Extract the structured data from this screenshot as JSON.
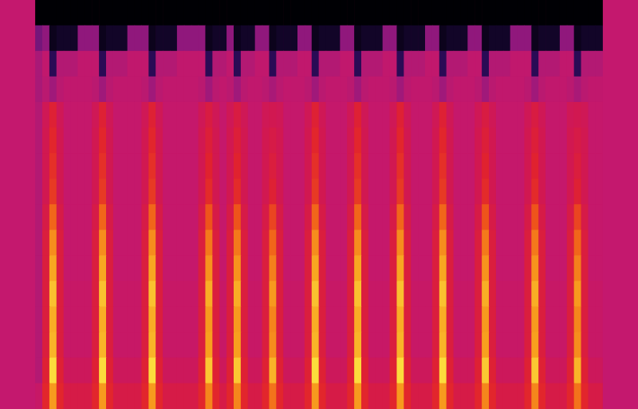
{
  "chart_data": {
    "type": "heatmap",
    "grid": false,
    "tick_labels": false,
    "cells": [
      [
        48,
        60,
        80,
        60,
        54,
        54,
        54,
        54,
        60,
        80,
        60,
        54,
        54,
        54,
        54,
        60,
        80,
        60,
        54,
        54,
        54,
        54,
        54,
        60,
        77,
        60,
        54,
        60,
        77,
        60,
        54,
        54,
        60,
        74,
        60,
        54,
        54,
        54,
        60,
        80,
        60,
        54,
        54,
        54,
        60,
        80,
        60,
        54,
        54,
        54,
        60,
        80,
        60,
        54,
        54,
        54,
        60,
        80,
        60,
        54,
        54,
        54,
        60,
        77,
        60,
        54,
        54,
        54,
        54,
        60,
        77,
        60,
        54,
        54,
        54,
        60,
        74,
        60,
        54,
        54
      ],
      [
        42,
        58,
        90,
        58,
        50,
        50,
        50,
        50,
        58,
        90,
        58,
        50,
        50,
        50,
        50,
        58,
        90,
        58,
        50,
        50,
        50,
        50,
        50,
        58,
        87,
        58,
        50,
        58,
        87,
        58,
        50,
        50,
        58,
        84,
        58,
        50,
        50,
        50,
        58,
        90,
        58,
        50,
        50,
        50,
        58,
        90,
        58,
        50,
        50,
        50,
        58,
        90,
        58,
        50,
        50,
        50,
        58,
        90,
        58,
        50,
        50,
        50,
        58,
        87,
        58,
        50,
        50,
        50,
        50,
        58,
        87,
        58,
        50,
        50,
        50,
        58,
        84,
        58,
        50,
        50
      ],
      [
        42,
        56,
        84,
        56,
        48,
        48,
        48,
        48,
        56,
        84,
        56,
        48,
        48,
        48,
        48,
        56,
        84,
        56,
        48,
        48,
        48,
        48,
        48,
        56,
        81,
        56,
        48,
        56,
        81,
        56,
        48,
        48,
        56,
        78,
        56,
        48,
        48,
        48,
        56,
        84,
        56,
        48,
        48,
        48,
        56,
        84,
        56,
        48,
        48,
        48,
        56,
        84,
        56,
        48,
        48,
        48,
        56,
        84,
        56,
        48,
        48,
        48,
        56,
        81,
        56,
        48,
        48,
        48,
        48,
        56,
        81,
        56,
        48,
        48,
        48,
        56,
        78,
        56,
        48,
        48
      ],
      [
        42,
        56,
        83,
        56,
        48,
        48,
        48,
        48,
        56,
        83,
        56,
        48,
        48,
        48,
        48,
        56,
        83,
        56,
        48,
        48,
        48,
        48,
        48,
        56,
        80,
        56,
        48,
        56,
        80,
        56,
        48,
        48,
        56,
        77,
        56,
        48,
        48,
        48,
        56,
        83,
        56,
        48,
        48,
        48,
        56,
        83,
        56,
        48,
        48,
        48,
        56,
        83,
        56,
        48,
        48,
        48,
        56,
        83,
        56,
        48,
        48,
        48,
        56,
        80,
        56,
        48,
        48,
        48,
        48,
        56,
        80,
        56,
        48,
        48,
        48,
        56,
        77,
        56,
        48,
        48
      ],
      [
        42,
        56,
        86,
        56,
        48,
        48,
        48,
        48,
        56,
        86,
        56,
        48,
        48,
        48,
        48,
        56,
        86,
        56,
        48,
        48,
        48,
        48,
        48,
        56,
        83,
        56,
        48,
        56,
        83,
        56,
        48,
        48,
        56,
        80,
        56,
        48,
        48,
        48,
        56,
        86,
        56,
        48,
        48,
        48,
        56,
        86,
        56,
        48,
        48,
        48,
        56,
        86,
        56,
        48,
        48,
        48,
        56,
        86,
        56,
        48,
        48,
        48,
        56,
        83,
        56,
        48,
        48,
        48,
        48,
        56,
        83,
        56,
        48,
        48,
        48,
        56,
        80,
        56,
        48,
        48
      ],
      [
        42,
        56,
        82,
        56,
        47,
        47,
        47,
        47,
        56,
        82,
        56,
        47,
        47,
        47,
        47,
        56,
        82,
        56,
        47,
        47,
        47,
        47,
        47,
        56,
        79,
        56,
        47,
        56,
        79,
        56,
        47,
        47,
        56,
        76,
        56,
        47,
        47,
        47,
        56,
        82,
        56,
        47,
        47,
        47,
        56,
        82,
        56,
        47,
        47,
        47,
        56,
        82,
        56,
        47,
        47,
        47,
        56,
        82,
        56,
        47,
        47,
        47,
        56,
        79,
        56,
        47,
        47,
        47,
        47,
        56,
        79,
        56,
        47,
        47,
        47,
        56,
        76,
        56,
        47,
        47
      ],
      [
        42,
        56,
        78,
        56,
        47,
        47,
        47,
        47,
        56,
        78,
        56,
        47,
        47,
        47,
        47,
        56,
        78,
        56,
        47,
        47,
        47,
        47,
        47,
        56,
        75,
        56,
        47,
        56,
        75,
        56,
        47,
        47,
        56,
        72,
        56,
        47,
        47,
        47,
        56,
        78,
        56,
        47,
        47,
        47,
        56,
        78,
        56,
        47,
        47,
        47,
        56,
        78,
        56,
        47,
        47,
        47,
        56,
        78,
        56,
        47,
        47,
        47,
        56,
        75,
        56,
        47,
        47,
        47,
        47,
        56,
        75,
        56,
        47,
        47,
        47,
        56,
        72,
        56,
        47,
        47
      ],
      [
        42,
        54,
        72,
        54,
        47,
        47,
        47,
        47,
        54,
        72,
        54,
        47,
        47,
        47,
        47,
        54,
        72,
        54,
        47,
        47,
        47,
        47,
        47,
        54,
        69,
        54,
        47,
        54,
        69,
        54,
        47,
        47,
        54,
        66,
        54,
        47,
        47,
        47,
        54,
        72,
        54,
        47,
        47,
        47,
        54,
        72,
        54,
        47,
        47,
        47,
        54,
        72,
        54,
        47,
        47,
        47,
        54,
        72,
        54,
        47,
        47,
        47,
        54,
        69,
        54,
        47,
        47,
        47,
        47,
        54,
        69,
        54,
        47,
        47,
        47,
        54,
        66,
        54,
        47,
        47
      ],
      [
        42,
        52,
        64,
        52,
        47,
        47,
        47,
        47,
        52,
        64,
        52,
        47,
        47,
        47,
        47,
        52,
        64,
        52,
        47,
        47,
        47,
        47,
        47,
        52,
        61,
        52,
        47,
        52,
        61,
        52,
        47,
        47,
        52,
        58,
        52,
        47,
        47,
        47,
        52,
        64,
        52,
        47,
        47,
        47,
        52,
        64,
        52,
        47,
        47,
        47,
        52,
        64,
        52,
        47,
        47,
        47,
        52,
        64,
        52,
        47,
        47,
        47,
        52,
        61,
        52,
        47,
        47,
        47,
        47,
        52,
        61,
        52,
        47,
        47,
        47,
        52,
        58,
        52,
        47,
        47
      ],
      [
        42,
        52,
        62,
        52,
        47,
        47,
        47,
        47,
        52,
        62,
        52,
        47,
        47,
        47,
        47,
        52,
        62,
        52,
        47,
        47,
        47,
        47,
        47,
        52,
        59,
        52,
        47,
        52,
        59,
        52,
        47,
        47,
        52,
        56,
        52,
        47,
        47,
        47,
        52,
        62,
        52,
        47,
        47,
        47,
        52,
        62,
        52,
        47,
        47,
        47,
        52,
        62,
        52,
        47,
        47,
        47,
        52,
        62,
        52,
        47,
        47,
        47,
        52,
        59,
        52,
        47,
        47,
        47,
        47,
        52,
        59,
        52,
        47,
        47,
        47,
        52,
        56,
        52,
        47,
        47
      ],
      [
        42,
        52,
        60,
        52,
        47,
        47,
        47,
        47,
        52,
        60,
        52,
        47,
        47,
        47,
        47,
        52,
        60,
        52,
        47,
        47,
        47,
        47,
        47,
        52,
        57,
        52,
        47,
        52,
        57,
        52,
        47,
        47,
        52,
        54,
        52,
        47,
        47,
        47,
        52,
        60,
        52,
        47,
        47,
        47,
        52,
        60,
        52,
        47,
        47,
        47,
        52,
        60,
        52,
        47,
        47,
        47,
        52,
        60,
        52,
        47,
        47,
        47,
        52,
        57,
        52,
        47,
        47,
        47,
        47,
        52,
        57,
        52,
        47,
        47,
        47,
        52,
        54,
        52,
        47,
        47
      ],
      [
        42,
        51,
        58,
        51,
        47,
        47,
        47,
        47,
        51,
        58,
        51,
        47,
        47,
        47,
        47,
        51,
        58,
        51,
        47,
        47,
        47,
        47,
        47,
        51,
        55,
        51,
        47,
        51,
        55,
        51,
        47,
        47,
        51,
        52,
        51,
        47,
        47,
        47,
        51,
        58,
        51,
        47,
        47,
        47,
        51,
        58,
        51,
        47,
        47,
        47,
        51,
        58,
        51,
        47,
        47,
        47,
        51,
        58,
        51,
        47,
        47,
        47,
        51,
        55,
        51,
        47,
        47,
        47,
        47,
        51,
        55,
        51,
        47,
        47,
        47,
        51,
        52,
        51,
        47,
        47
      ],
      [
        40,
        44,
        38,
        44,
        46,
        46,
        46,
        46,
        44,
        38,
        44,
        46,
        46,
        46,
        46,
        44,
        38,
        44,
        46,
        46,
        46,
        46,
        46,
        44,
        38,
        44,
        46,
        44,
        38,
        44,
        46,
        46,
        44,
        40,
        44,
        46,
        46,
        46,
        44,
        38,
        44,
        46,
        46,
        46,
        44,
        38,
        44,
        46,
        46,
        46,
        44,
        38,
        44,
        46,
        46,
        46,
        44,
        38,
        44,
        46,
        46,
        46,
        44,
        38,
        44,
        46,
        46,
        46,
        46,
        44,
        38,
        44,
        46,
        46,
        46,
        44,
        40,
        44,
        46,
        46
      ],
      [
        40,
        46,
        14,
        42,
        42,
        42,
        46,
        46,
        46,
        14,
        42,
        42,
        42,
        46,
        46,
        46,
        14,
        42,
        42,
        42,
        46,
        46,
        46,
        46,
        14,
        42,
        42,
        46,
        14,
        42,
        42,
        46,
        46,
        14,
        42,
        42,
        42,
        46,
        46,
        14,
        42,
        42,
        42,
        46,
        46,
        14,
        42,
        42,
        42,
        46,
        46,
        14,
        42,
        42,
        42,
        46,
        46,
        14,
        42,
        42,
        42,
        46,
        46,
        14,
        42,
        42,
        42,
        46,
        46,
        46,
        14,
        42,
        42,
        42,
        46,
        46,
        14,
        42,
        42,
        42
      ],
      [
        30,
        35,
        4,
        6,
        6,
        6,
        35,
        35,
        35,
        4,
        6,
        6,
        6,
        35,
        35,
        35,
        4,
        6,
        6,
        6,
        35,
        35,
        35,
        35,
        4,
        6,
        6,
        35,
        4,
        6,
        6,
        35,
        35,
        4,
        6,
        6,
        6,
        35,
        35,
        4,
        6,
        6,
        6,
        35,
        35,
        4,
        6,
        6,
        6,
        35,
        35,
        4,
        6,
        6,
        6,
        35,
        35,
        4,
        6,
        6,
        6,
        35,
        35,
        4,
        6,
        6,
        6,
        35,
        35,
        35,
        4,
        6,
        6,
        6,
        35,
        35,
        4,
        6,
        6,
        6
      ],
      [
        0,
        0,
        0,
        0,
        0,
        0,
        0,
        0,
        0,
        0,
        0,
        0,
        0,
        0,
        0,
        0,
        0,
        0,
        0,
        0,
        0,
        0,
        0,
        0,
        0,
        0,
        0,
        0,
        0,
        0,
        0,
        0,
        0,
        0,
        0,
        0,
        0,
        0,
        0,
        0,
        0,
        0,
        0,
        0,
        0,
        0,
        0,
        0,
        0,
        0,
        0,
        0,
        0,
        0,
        0,
        0,
        0,
        0,
        0,
        0,
        0,
        0,
        0,
        0,
        0,
        0,
        0,
        0,
        0,
        0,
        0,
        0,
        0,
        0,
        0,
        0,
        0,
        0,
        0,
        0
      ]
    ]
  }
}
